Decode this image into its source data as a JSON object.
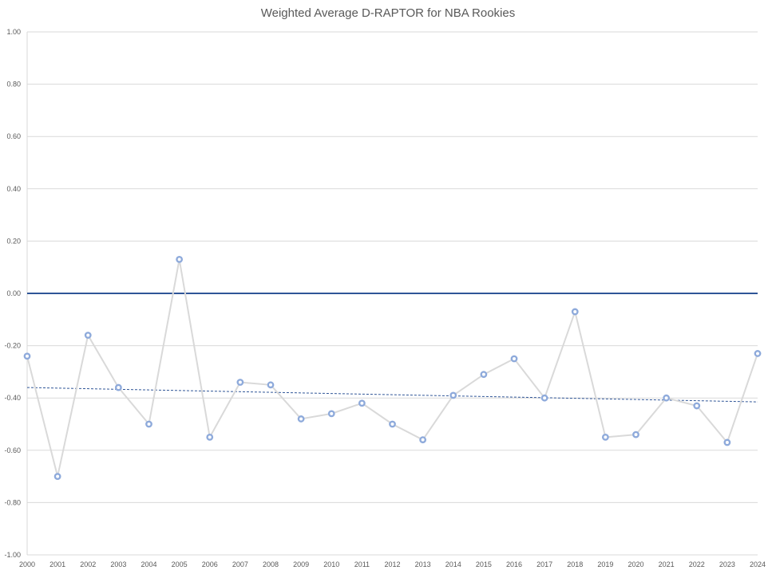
{
  "chart_data": {
    "type": "line",
    "title": "Weighted Average D-RAPTOR for NBA Rookies",
    "xlabel": "",
    "ylabel": "",
    "ylim": [
      -1.0,
      1.0
    ],
    "yticks": [
      "1.00",
      "0.80",
      "0.60",
      "0.40",
      "0.20",
      "0.00",
      "-0.20",
      "-0.40",
      "-0.60",
      "-0.80",
      "-1.00"
    ],
    "categories": [
      "2000",
      "2001",
      "2002",
      "2003",
      "2004",
      "2005",
      "2006",
      "2007",
      "2008",
      "2009",
      "2010",
      "2011",
      "2012",
      "2013",
      "2014",
      "2015",
      "2016",
      "2017",
      "2018",
      "2019",
      "2020",
      "2021",
      "2022",
      "2023",
      "2024"
    ],
    "series": [
      {
        "values": [
          -0.24,
          -0.7,
          -0.16,
          -0.36,
          -0.5,
          0.13,
          -0.55,
          -0.34,
          -0.35,
          -0.48,
          -0.46,
          -0.42,
          -0.5,
          -0.56,
          -0.39,
          -0.31,
          -0.25,
          -0.4,
          -0.07,
          -0.55,
          -0.54,
          -0.4,
          -0.43,
          -0.57,
          -0.23
        ],
        "color": "#d9d9d9",
        "marker_color": "#8eaadb"
      }
    ],
    "trendline": {
      "start": -0.36,
      "end": -0.415,
      "color": "#2f5597",
      "style": "dashed"
    },
    "zero_line_color": "#2f5597",
    "grid": true,
    "legend": "none"
  }
}
